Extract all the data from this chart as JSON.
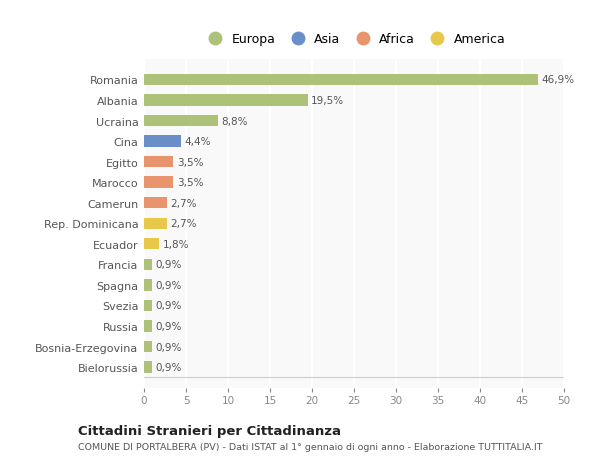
{
  "countries": [
    "Romania",
    "Albania",
    "Ucraina",
    "Cina",
    "Egitto",
    "Marocco",
    "Camerun",
    "Rep. Dominicana",
    "Ecuador",
    "Francia",
    "Spagna",
    "Svezia",
    "Russia",
    "Bosnia-Erzegovina",
    "Bielorussia"
  ],
  "values": [
    46.9,
    19.5,
    8.8,
    4.4,
    3.5,
    3.5,
    2.7,
    2.7,
    1.8,
    0.9,
    0.9,
    0.9,
    0.9,
    0.9,
    0.9
  ],
  "labels": [
    "46,9%",
    "19,5%",
    "8,8%",
    "4,4%",
    "3,5%",
    "3,5%",
    "2,7%",
    "2,7%",
    "1,8%",
    "0,9%",
    "0,9%",
    "0,9%",
    "0,9%",
    "0,9%",
    "0,9%"
  ],
  "colors": [
    "#adc178",
    "#adc178",
    "#adc178",
    "#6a8fc8",
    "#e8956d",
    "#e8956d",
    "#e8956d",
    "#e8c84a",
    "#e8c84a",
    "#adc178",
    "#adc178",
    "#adc178",
    "#adc178",
    "#adc178",
    "#adc178"
  ],
  "legend_labels": [
    "Europa",
    "Asia",
    "Africa",
    "America"
  ],
  "legend_colors": [
    "#adc178",
    "#6a8fc8",
    "#e8956d",
    "#e8c84a"
  ],
  "xlim": [
    0,
    50
  ],
  "xticks": [
    0,
    5,
    10,
    15,
    20,
    25,
    30,
    35,
    40,
    45,
    50
  ],
  "title": "Cittadini Stranieri per Cittadinanza",
  "subtitle": "COMUNE DI PORTALBERA (PV) - Dati ISTAT al 1° gennaio di ogni anno - Elaborazione TUTTITALIA.IT",
  "bg_color": "#ffffff",
  "plot_bg_color": "#f9f9f9",
  "grid_color": "#ffffff",
  "bar_height": 0.55
}
